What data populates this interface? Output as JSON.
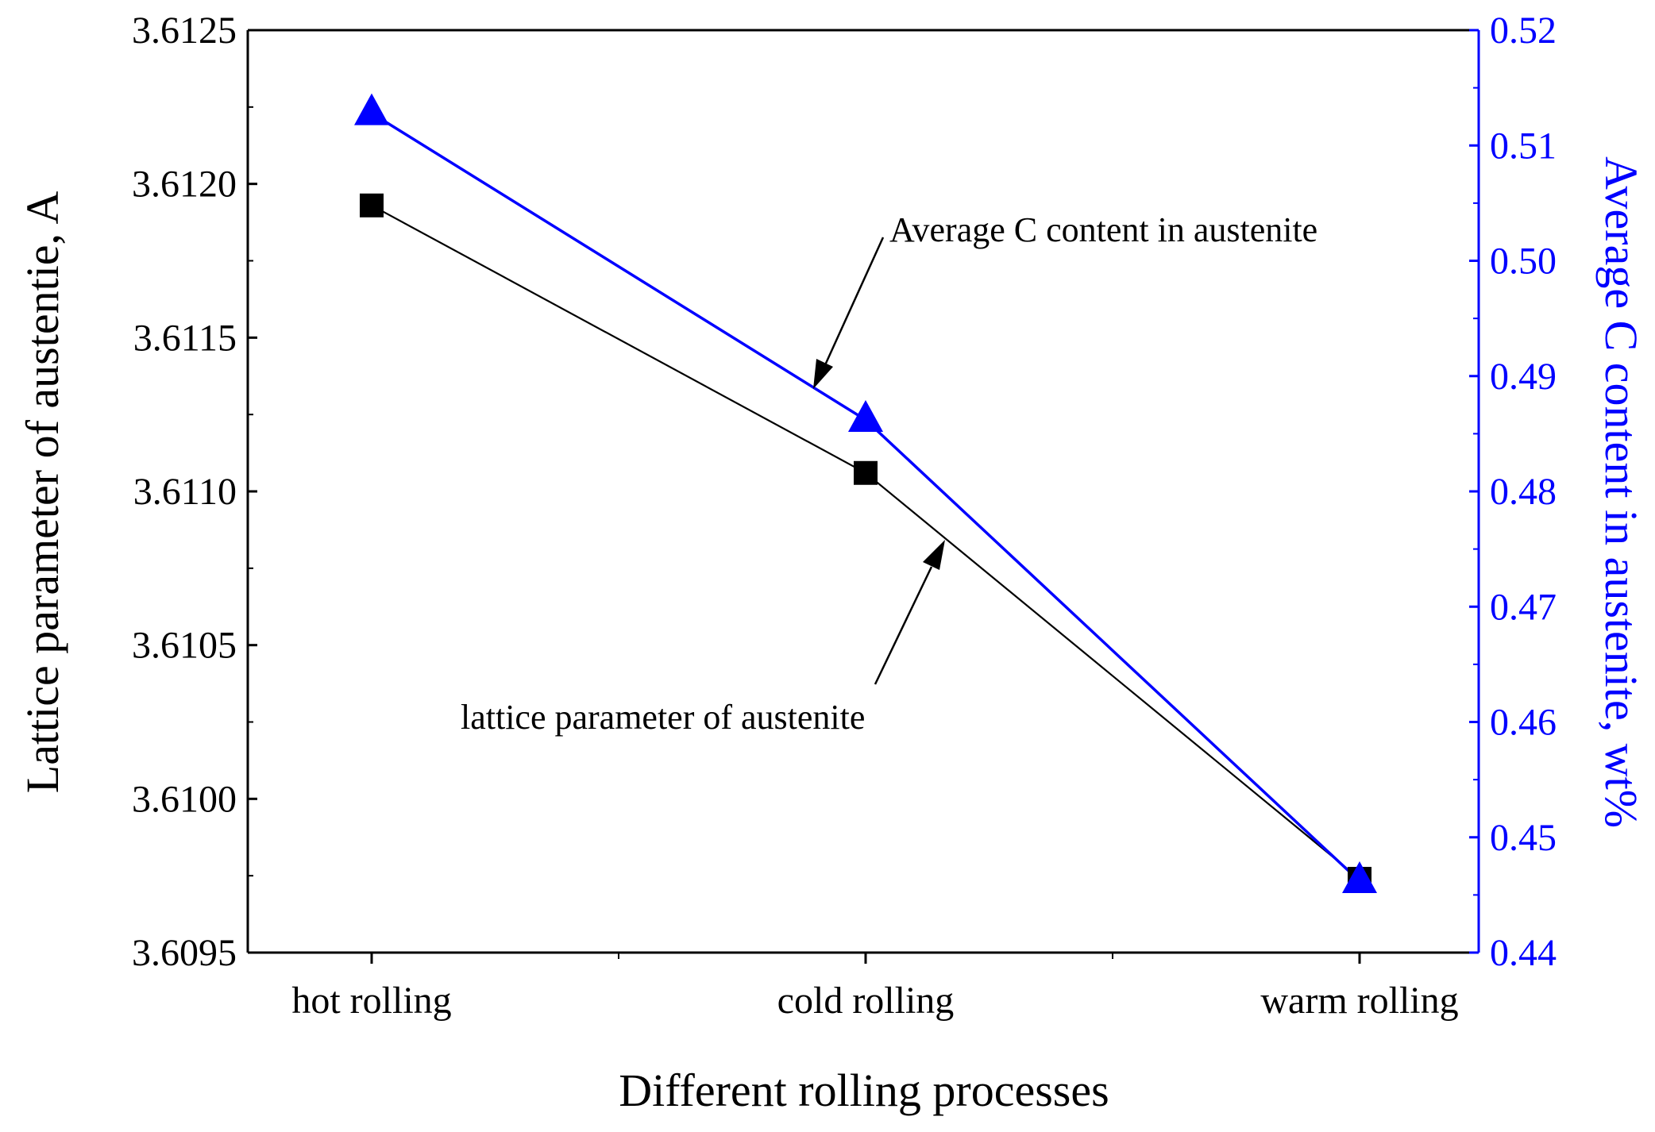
{
  "chart_data": {
    "type": "line",
    "title": "",
    "categories": [
      "hot rolling",
      "cold rolling",
      "warm rolling"
    ],
    "xlabel": "Different rolling processes",
    "ylabel": "Lattice parameter of austentie, A",
    "y2label": "Average C content in austenite, wt%",
    "ylim": [
      3.6095,
      3.6125
    ],
    "y2lim": [
      0.44,
      0.52
    ],
    "yticks": [
      "3.6095",
      "3.6100",
      "3.6105",
      "3.6110",
      "3.6115",
      "3.6120",
      "3.6125"
    ],
    "y2ticks": [
      "0.44",
      "0.45",
      "0.46",
      "0.47",
      "0.48",
      "0.49",
      "0.50",
      "0.51",
      "0.52"
    ],
    "series": [
      {
        "name": "lattice parameter of austenite",
        "axis": "left",
        "marker": "square",
        "color": "#000000",
        "values": [
          3.61193,
          3.61106,
          3.60974
        ]
      },
      {
        "name": "Average C content in austenite",
        "axis": "right",
        "marker": "triangle",
        "color": "#0000ff",
        "values": [
          0.5128,
          0.4862,
          0.4462
        ]
      }
    ],
    "annotations": [
      {
        "text": "Average C content in austenite",
        "points_to": "Average C content in austenite"
      },
      {
        "text": "lattice parameter of austenite",
        "points_to": "lattice parameter of austenite"
      }
    ],
    "grid": false
  }
}
